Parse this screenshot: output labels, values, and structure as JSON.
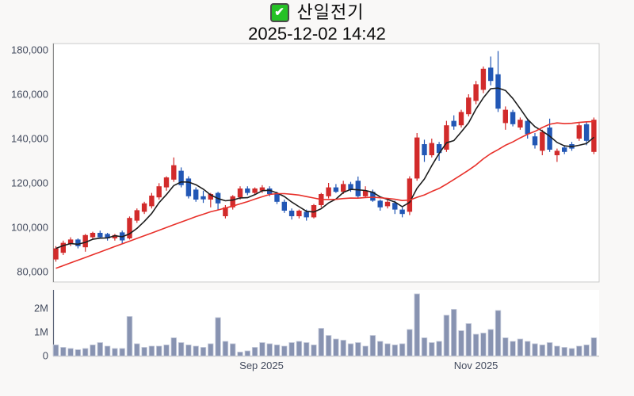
{
  "page": {
    "background": "#f9f8f7"
  },
  "header": {
    "checkbox_glyph": "✔",
    "symbol_name": "산일전기",
    "datetime": "2025-12-02 14:42"
  },
  "chart_data": {
    "type": "candlestick",
    "title": "산일전기",
    "as_of": "2025-12-02 14:42",
    "panels": [
      "price",
      "volume"
    ],
    "price_axis": {
      "side": "left",
      "ticks": [
        {
          "label": "180,000",
          "value": 180000
        },
        {
          "label": "160,000",
          "value": 160000
        },
        {
          "label": "140,000",
          "value": 140000
        },
        {
          "label": "120,000",
          "value": 120000
        },
        {
          "label": "100,000",
          "value": 100000
        },
        {
          "label": "80,000",
          "value": 80000
        }
      ]
    },
    "volume_axis": {
      "unit": "millions",
      "ticks": [
        {
          "label": "2M",
          "value": 2
        },
        {
          "label": "1M",
          "value": 1
        },
        {
          "label": "0",
          "value": 0
        }
      ]
    },
    "x_axis": {
      "ticks": [
        {
          "label": "Sep 2025",
          "index": 27.9
        },
        {
          "label": "Nov 2025",
          "index": 57.0
        }
      ]
    },
    "style": {
      "up_color": "#d22b2b",
      "down_color": "#2257b5",
      "ma_short_color": "#1d1d1d",
      "ma_long_color": "#e8302a",
      "volume_fill": "#8893b1",
      "volume_stroke": "#c9cedd",
      "plot_border": "#cbcbcb",
      "axis_line": "#8c8c8c",
      "volume_axis_line": "#5b6478",
      "bottom_line": "#b4b4b4"
    },
    "moving_averages": {
      "short_period": 5,
      "long_period": 20,
      "long_visible_start": 81500
    },
    "candles": {
      "open": [
        85500,
        88500,
        92500,
        94500,
        91000,
        95500,
        97500,
        97000,
        95000,
        97700,
        95000,
        103000,
        107000,
        109500,
        113500,
        118000,
        121500,
        125500,
        122000,
        117000,
        114000,
        112500,
        115500,
        105000,
        109000,
        113500,
        117500,
        115500,
        116500,
        117500,
        115000,
        111500,
        107500,
        105000,
        107000,
        104500,
        110000,
        114000,
        118000,
        116000,
        119500,
        121000,
        114000,
        116000,
        112000,
        109500,
        111000,
        108000,
        107000,
        122000,
        137500,
        132500,
        137500,
        135000,
        148000,
        146000,
        151000,
        157000,
        162000,
        172000,
        169000,
        147000,
        152000,
        145000,
        148000,
        141000,
        134500,
        145000,
        132500,
        136000,
        137500,
        140000,
        146500,
        134000
      ],
      "high": [
        91500,
        94000,
        95500,
        95000,
        97000,
        98000,
        98500,
        97500,
        97000,
        98500,
        104900,
        108500,
        111500,
        115500,
        119900,
        123000,
        131500,
        127000,
        123000,
        118000,
        116500,
        115500,
        116000,
        110000,
        114500,
        118500,
        118500,
        118000,
        119000,
        118500,
        116000,
        112500,
        108500,
        108000,
        108000,
        110500,
        115500,
        120000,
        119500,
        121000,
        120500,
        122900,
        118500,
        117000,
        112500,
        113000,
        112000,
        109000,
        123000,
        142500,
        139500,
        140000,
        138500,
        148000,
        150500,
        153000,
        160000,
        166000,
        172500,
        177000,
        179500,
        154500,
        153000,
        149500,
        149000,
        142500,
        144000,
        149000,
        135500,
        137000,
        138500,
        147000,
        147500,
        149500
      ],
      "low": [
        84500,
        87500,
        91500,
        90500,
        89000,
        94500,
        95000,
        94000,
        94000,
        92500,
        94500,
        102000,
        106000,
        108500,
        112500,
        116500,
        120500,
        118000,
        113000,
        111500,
        111000,
        109000,
        108000,
        104000,
        108000,
        112500,
        114500,
        114500,
        115500,
        114000,
        110500,
        106500,
        103500,
        104000,
        103000,
        104000,
        109000,
        113000,
        115500,
        115000,
        116000,
        113000,
        113500,
        111500,
        107500,
        108500,
        106000,
        104500,
        105500,
        121000,
        129500,
        131500,
        130000,
        134000,
        144000,
        145000,
        150000,
        155500,
        160500,
        164000,
        152000,
        144000,
        145500,
        144000,
        140000,
        135500,
        132500,
        134000,
        129500,
        133000,
        134500,
        139000,
        137000,
        133000
      ],
      "close": [
        90500,
        93000,
        94500,
        91500,
        96500,
        97500,
        95500,
        95000,
        96500,
        94100,
        104200,
        107700,
        110800,
        114300,
        118500,
        122500,
        128000,
        119000,
        114000,
        112500,
        112600,
        115000,
        110800,
        109000,
        114000,
        117500,
        115500,
        117500,
        118000,
        115000,
        111500,
        107500,
        105000,
        107500,
        104500,
        110000,
        115000,
        118000,
        116000,
        119500,
        117000,
        114000,
        116500,
        112000,
        109000,
        111500,
        108000,
        106000,
        122000,
        140500,
        132500,
        138000,
        133500,
        146000,
        145500,
        152000,
        158500,
        164500,
        171500,
        166000,
        153500,
        153000,
        146500,
        148500,
        142000,
        137000,
        143000,
        135000,
        134500,
        134000,
        135500,
        146000,
        139000,
        148500
      ]
    },
    "volume_millions": [
      0.45,
      0.35,
      0.3,
      0.25,
      0.3,
      0.45,
      0.55,
      0.4,
      0.3,
      0.3,
      1.65,
      0.5,
      0.35,
      0.4,
      0.4,
      0.45,
      0.75,
      0.55,
      0.45,
      0.4,
      0.35,
      0.5,
      1.6,
      0.6,
      0.5,
      0.15,
      0.2,
      0.35,
      0.55,
      0.5,
      0.45,
      0.4,
      0.55,
      0.6,
      0.55,
      0.45,
      1.15,
      0.85,
      0.7,
      0.65,
      0.5,
      0.55,
      0.4,
      0.85,
      0.6,
      0.5,
      0.45,
      0.5,
      1.1,
      2.6,
      0.75,
      0.55,
      0.6,
      1.7,
      1.95,
      1.05,
      1.35,
      0.9,
      0.95,
      1.1,
      1.9,
      0.75,
      0.6,
      0.7,
      0.6,
      0.5,
      0.45,
      0.55,
      0.4,
      0.35,
      0.3,
      0.4,
      0.45,
      0.75
    ]
  }
}
